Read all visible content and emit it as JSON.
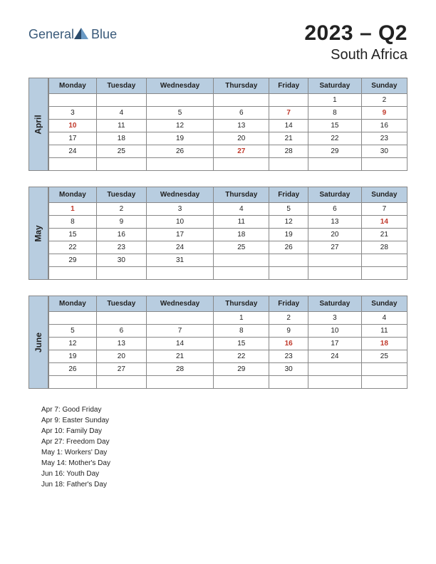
{
  "brand": {
    "name1": "General",
    "name2": "Blue"
  },
  "title": {
    "main": "2023 – Q2",
    "sub": "South Africa"
  },
  "colors": {
    "header_bg": "#b8cde0",
    "border": "#888888",
    "holiday_text": "#c0392b",
    "text": "#222222",
    "logo_text": "#3a5a7a"
  },
  "day_headers": [
    "Monday",
    "Tuesday",
    "Wednesday",
    "Thursday",
    "Friday",
    "Saturday",
    "Sunday"
  ],
  "months": [
    {
      "name": "April",
      "weeks": [
        [
          {
            "d": ""
          },
          {
            "d": ""
          },
          {
            "d": ""
          },
          {
            "d": ""
          },
          {
            "d": ""
          },
          {
            "d": "1"
          },
          {
            "d": "2"
          }
        ],
        [
          {
            "d": "3"
          },
          {
            "d": "4"
          },
          {
            "d": "5"
          },
          {
            "d": "6"
          },
          {
            "d": "7",
            "h": true
          },
          {
            "d": "8"
          },
          {
            "d": "9",
            "h": true
          }
        ],
        [
          {
            "d": "10",
            "h": true
          },
          {
            "d": "11"
          },
          {
            "d": "12"
          },
          {
            "d": "13"
          },
          {
            "d": "14"
          },
          {
            "d": "15"
          },
          {
            "d": "16"
          }
        ],
        [
          {
            "d": "17"
          },
          {
            "d": "18"
          },
          {
            "d": "19"
          },
          {
            "d": "20"
          },
          {
            "d": "21"
          },
          {
            "d": "22"
          },
          {
            "d": "23"
          }
        ],
        [
          {
            "d": "24"
          },
          {
            "d": "25"
          },
          {
            "d": "26"
          },
          {
            "d": "27",
            "h": true
          },
          {
            "d": "28"
          },
          {
            "d": "29"
          },
          {
            "d": "30"
          }
        ],
        [
          {
            "d": ""
          },
          {
            "d": ""
          },
          {
            "d": ""
          },
          {
            "d": ""
          },
          {
            "d": ""
          },
          {
            "d": ""
          },
          {
            "d": ""
          }
        ]
      ]
    },
    {
      "name": "May",
      "weeks": [
        [
          {
            "d": "1",
            "h": true
          },
          {
            "d": "2"
          },
          {
            "d": "3"
          },
          {
            "d": "4"
          },
          {
            "d": "5"
          },
          {
            "d": "6"
          },
          {
            "d": "7"
          }
        ],
        [
          {
            "d": "8"
          },
          {
            "d": "9"
          },
          {
            "d": "10"
          },
          {
            "d": "11"
          },
          {
            "d": "12"
          },
          {
            "d": "13"
          },
          {
            "d": "14",
            "h": true
          }
        ],
        [
          {
            "d": "15"
          },
          {
            "d": "16"
          },
          {
            "d": "17"
          },
          {
            "d": "18"
          },
          {
            "d": "19"
          },
          {
            "d": "20"
          },
          {
            "d": "21"
          }
        ],
        [
          {
            "d": "22"
          },
          {
            "d": "23"
          },
          {
            "d": "24"
          },
          {
            "d": "25"
          },
          {
            "d": "26"
          },
          {
            "d": "27"
          },
          {
            "d": "28"
          }
        ],
        [
          {
            "d": "29"
          },
          {
            "d": "30"
          },
          {
            "d": "31"
          },
          {
            "d": ""
          },
          {
            "d": ""
          },
          {
            "d": ""
          },
          {
            "d": ""
          }
        ],
        [
          {
            "d": ""
          },
          {
            "d": ""
          },
          {
            "d": ""
          },
          {
            "d": ""
          },
          {
            "d": ""
          },
          {
            "d": ""
          },
          {
            "d": ""
          }
        ]
      ]
    },
    {
      "name": "June",
      "weeks": [
        [
          {
            "d": ""
          },
          {
            "d": ""
          },
          {
            "d": ""
          },
          {
            "d": "1"
          },
          {
            "d": "2"
          },
          {
            "d": "3"
          },
          {
            "d": "4"
          }
        ],
        [
          {
            "d": "5"
          },
          {
            "d": "6"
          },
          {
            "d": "7"
          },
          {
            "d": "8"
          },
          {
            "d": "9"
          },
          {
            "d": "10"
          },
          {
            "d": "11"
          }
        ],
        [
          {
            "d": "12"
          },
          {
            "d": "13"
          },
          {
            "d": "14"
          },
          {
            "d": "15"
          },
          {
            "d": "16",
            "h": true
          },
          {
            "d": "17"
          },
          {
            "d": "18",
            "h": true
          }
        ],
        [
          {
            "d": "19"
          },
          {
            "d": "20"
          },
          {
            "d": "21"
          },
          {
            "d": "22"
          },
          {
            "d": "23"
          },
          {
            "d": "24"
          },
          {
            "d": "25"
          }
        ],
        [
          {
            "d": "26"
          },
          {
            "d": "27"
          },
          {
            "d": "28"
          },
          {
            "d": "29"
          },
          {
            "d": "30"
          },
          {
            "d": ""
          },
          {
            "d": ""
          }
        ],
        [
          {
            "d": ""
          },
          {
            "d": ""
          },
          {
            "d": ""
          },
          {
            "d": ""
          },
          {
            "d": ""
          },
          {
            "d": ""
          },
          {
            "d": ""
          }
        ]
      ]
    }
  ],
  "holidays": [
    "Apr 7: Good Friday",
    "Apr 9: Easter Sunday",
    "Apr 10: Family Day",
    "Apr 27: Freedom Day",
    "May 1: Workers' Day",
    "May 14: Mother's Day",
    "Jun 16: Youth Day",
    "Jun 18: Father's Day"
  ]
}
